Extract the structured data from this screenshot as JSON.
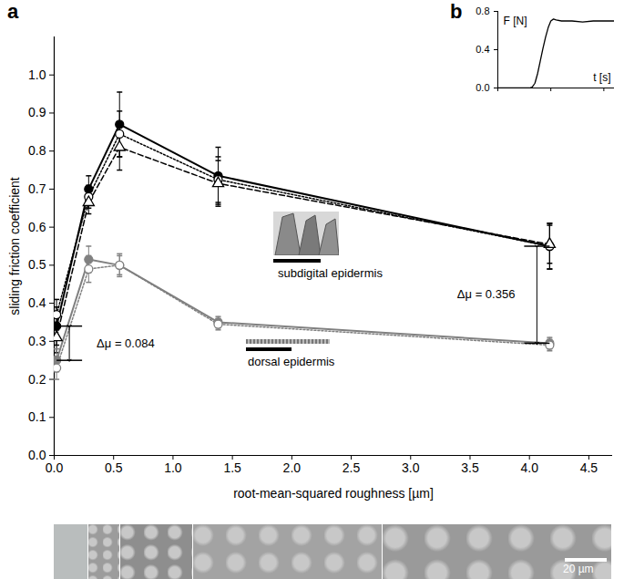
{
  "chart_data": [
    {
      "type": "line",
      "title": "a",
      "x_label": "root-mean-squared roughness [µm]",
      "y_label": "sliding friction coefficient",
      "x": [
        0.02,
        0.29,
        0.55,
        1.38,
        4.17
      ],
      "series": [
        {
          "color": "#000000",
          "marker": "filled circle",
          "line_style": "solid",
          "values": [
            0.34,
            0.7,
            0.87,
            0.735,
            0.55
          ],
          "errors": [
            0.05,
            0.035,
            0.085,
            0.075,
            0.06
          ]
        },
        {
          "color": "#000000",
          "marker": "open circle",
          "line_style": "dotted",
          "values": [
            0.37,
            0.68,
            0.845,
            0.725,
            0.55
          ],
          "errors": [
            0.04,
            0.03,
            0.06,
            0.06,
            0.06
          ]
        },
        {
          "color": "#000000",
          "marker": "open triangle",
          "line_style": "dashed",
          "values": [
            0.31,
            0.665,
            0.81,
            0.715,
            0.555
          ],
          "errors": [
            0.04,
            0.03,
            0.06,
            0.06,
            0.05
          ]
        },
        {
          "color": "#808080",
          "marker": "filled circle",
          "line_style": "solid",
          "values": [
            0.25,
            0.515,
            0.5,
            0.35,
            0.295
          ],
          "errors": [
            0.03,
            0.035,
            0.03,
            0.015,
            0.015
          ]
        },
        {
          "color": "#808080",
          "marker": "open circle",
          "line_style": "dotted",
          "values": [
            0.23,
            0.49,
            0.5,
            0.345,
            0.29
          ],
          "errors": [
            0.03,
            0.035,
            0.025,
            0.015,
            0.015
          ]
        }
      ],
      "xlim": [
        0,
        4.7
      ],
      "xticks": [
        {
          "value": 0,
          "label": "0.0"
        },
        0.5,
        {
          "value": 1,
          "label": "1.0"
        },
        1.5,
        {
          "value": 2,
          "label": "2.0"
        },
        2.5,
        {
          "value": 3,
          "label": "3.0"
        },
        3.5,
        {
          "value": 4,
          "label": "4.0"
        },
        4.5
      ],
      "ylim": [
        0,
        1.1
      ],
      "yticks": [
        {
          "value": 0,
          "label": "0.0"
        },
        0.1,
        0.2,
        0.3,
        0.4,
        0.5,
        0.6,
        0.7,
        0.8,
        0.9,
        {
          "value": 1,
          "label": "1.0"
        }
      ],
      "annotations": [
        "Δμ = 0.084",
        "Δμ = 0.356",
        "subdigital epidermis",
        "dorsal epidermis",
        "20 µm"
      ]
    },
    {
      "type": "line",
      "title": "b",
      "x_label": "t [s]",
      "y_label": "F [N]",
      "x": [
        0,
        2,
        4,
        6,
        6.5,
        7,
        7.5,
        8,
        8.5,
        9,
        9.5,
        10,
        10.5,
        11,
        12,
        14,
        16,
        18,
        20,
        22
      ],
      "values": [
        0,
        0,
        0,
        0,
        0.01,
        0.05,
        0.15,
        0.28,
        0.41,
        0.53,
        0.63,
        0.7,
        0.72,
        0.71,
        0.7,
        0.7,
        0.69,
        0.7,
        0.7,
        0.7
      ],
      "color": "#000000",
      "xlim": [
        0,
        22
      ],
      "xticks": [
        0,
        10,
        20
      ],
      "ylim": [
        0,
        0.8
      ],
      "yticks": [
        {
          "value": 0,
          "label": "0.0"
        },
        0.4,
        {
          "value": 0.8,
          "label": "0.8"
        }
      ],
      "tick_labels": "y"
    }
  ]
}
